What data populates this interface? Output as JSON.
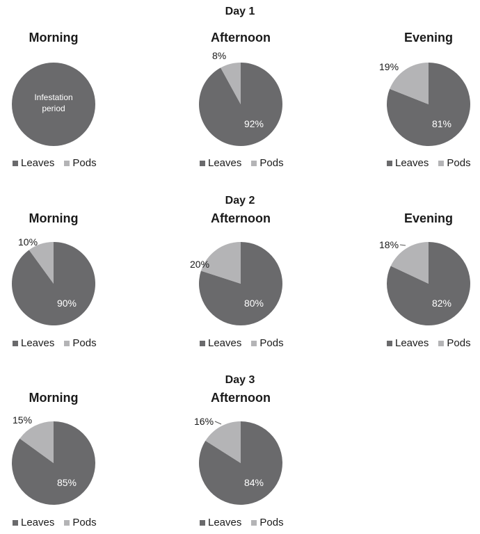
{
  "colors": {
    "leaves": "#6a6a6c",
    "pods": "#b4b4b6",
    "inside_label": "#ffffff"
  },
  "legend": {
    "leaves": "Leaves",
    "pods": "Pods"
  },
  "chart_data": [
    {
      "type": "pie",
      "day": "Day 1",
      "title": "Morning",
      "categories": [
        "Leaves"
      ],
      "values": [
        100
      ],
      "center_text": [
        "Infestation",
        "period"
      ],
      "labels": []
    },
    {
      "type": "pie",
      "day": "Day 1",
      "title": "Afternoon",
      "categories": [
        "Leaves",
        "Pods"
      ],
      "values": [
        92,
        8
      ],
      "labels": [
        "92%",
        "8%"
      ]
    },
    {
      "type": "pie",
      "day": "Day 1",
      "title": "Evening",
      "categories": [
        "Leaves",
        "Pods"
      ],
      "values": [
        81,
        19
      ],
      "labels": [
        "81%",
        "19%"
      ]
    },
    {
      "type": "pie",
      "day": "Day 2",
      "title": "Morning",
      "categories": [
        "Leaves",
        "Pods"
      ],
      "values": [
        90,
        10
      ],
      "labels": [
        "90%",
        "10%"
      ]
    },
    {
      "type": "pie",
      "day": "Day 2",
      "title": "Afternoon",
      "categories": [
        "Leaves",
        "Pods"
      ],
      "values": [
        80,
        20
      ],
      "labels": [
        "80%",
        "20%"
      ]
    },
    {
      "type": "pie",
      "day": "Day 2",
      "title": "Evening",
      "categories": [
        "Leaves",
        "Pods"
      ],
      "values": [
        82,
        18
      ],
      "labels": [
        "82%",
        "18%"
      ]
    },
    {
      "type": "pie",
      "day": "Day 3",
      "title": "Morning",
      "categories": [
        "Leaves",
        "Pods"
      ],
      "values": [
        85,
        15
      ],
      "labels": [
        "85%",
        "15%"
      ]
    },
    {
      "type": "pie",
      "day": "Day 3",
      "title": "Afternoon",
      "categories": [
        "Leaves",
        "Pods"
      ],
      "values": [
        84,
        16
      ],
      "labels": [
        "84%",
        "16%"
      ]
    }
  ],
  "days": [
    "Day 1",
    "Day 2",
    "Day 3"
  ]
}
